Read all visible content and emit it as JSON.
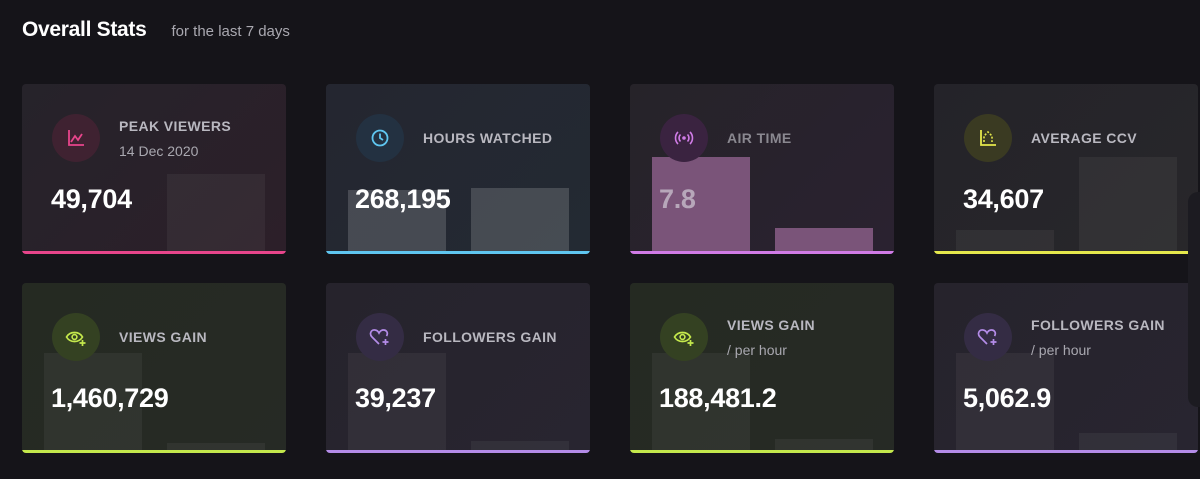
{
  "header": {
    "title": "Overall Stats",
    "subtitle": "for the last 7 days"
  },
  "cards": [
    {
      "label": "PEAK VIEWERS",
      "sublabel": "14 Dec 2020",
      "value": "49,704",
      "icon": "chart-line-icon",
      "accent": "#e8458b"
    },
    {
      "label": "HOURS WATCHED",
      "sublabel": "",
      "value": "268,195",
      "icon": "clock-icon",
      "accent": "#5fc6f0"
    },
    {
      "label": "AIR TIME",
      "sublabel": "",
      "value": "7.8",
      "icon": "broadcast-icon",
      "accent": "#d07be6"
    },
    {
      "label": "AVERAGE CCV",
      "sublabel": "",
      "value": "34,607",
      "icon": "chart-dotted-icon",
      "accent": "#e5e84c"
    },
    {
      "label": "VIEWS GAIN",
      "sublabel": "",
      "value": "1,460,729",
      "icon": "eye-plus-icon",
      "accent": "#c4e84c"
    },
    {
      "label": "FOLLOWERS GAIN",
      "sublabel": "",
      "value": "39,237",
      "icon": "heart-plus-icon",
      "accent": "#b48ce8"
    },
    {
      "label": "VIEWS GAIN",
      "sublabel": "/ per hour",
      "value": "188,481.2",
      "icon": "eye-plus-icon",
      "accent": "#c4e84c"
    },
    {
      "label": "FOLLOWERS GAIN",
      "sublabel": "/ per hour",
      "value": "5,062.9",
      "icon": "heart-plus-icon",
      "accent": "#b48ce8"
    }
  ]
}
